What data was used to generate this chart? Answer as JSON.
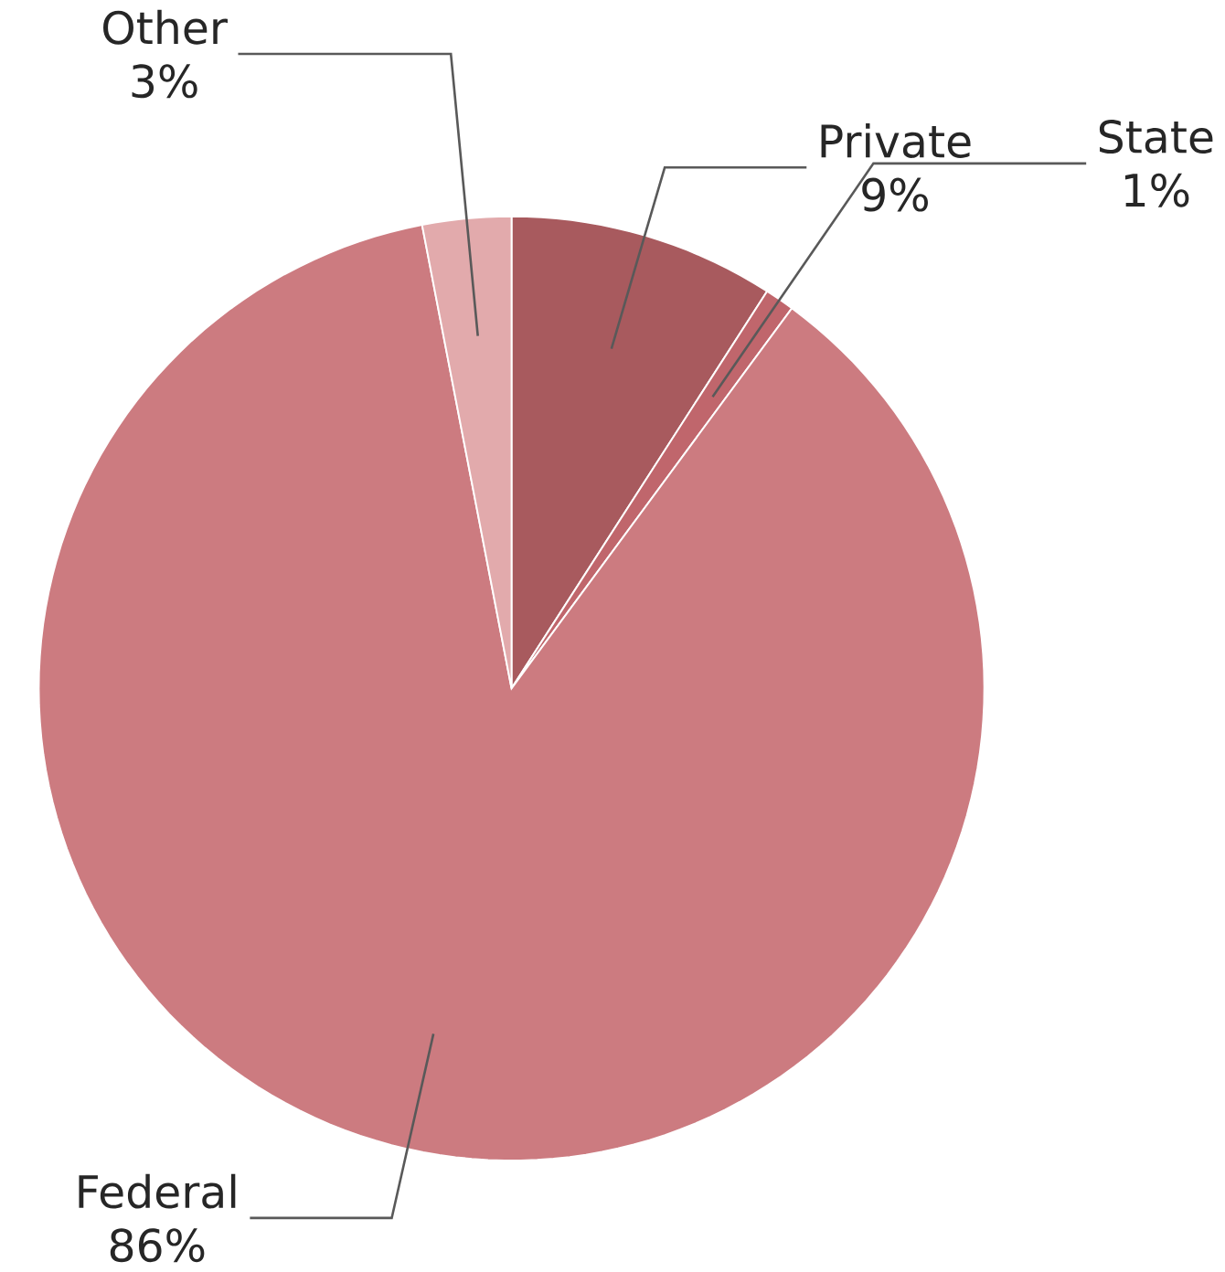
{
  "chart_data": {
    "type": "pie",
    "categories": [
      "Private",
      "State",
      "Federal",
      "Other"
    ],
    "values": [
      9,
      1,
      86,
      3
    ],
    "value_labels": [
      "9%",
      "1%",
      "86%",
      "3%"
    ],
    "colors": [
      "#a85a5e",
      "#c0666c",
      "#cc7b80",
      "#e2aaac"
    ]
  }
}
